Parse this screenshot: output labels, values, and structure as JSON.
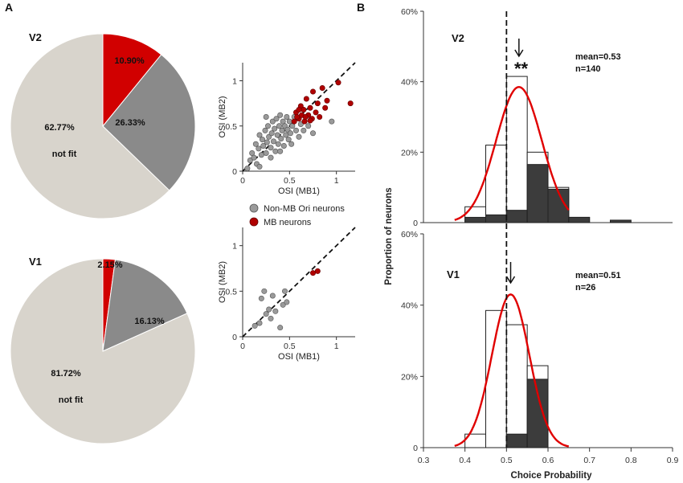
{
  "panels": {
    "A": "A",
    "B": "B"
  },
  "colors": {
    "notfit": "#d8d4cc",
    "gray": "#8a8a8a",
    "red": "#d10000",
    "dark": "#3c3c3c",
    "curve": "#e00000"
  },
  "chart_data": [
    {
      "id": "pie-v2",
      "type": "pie",
      "row_label": "V2",
      "slices": [
        {
          "label": "10.90%",
          "value": 10.9,
          "color": "#d10000",
          "sub_label": ""
        },
        {
          "label": "26.33%",
          "value": 26.33,
          "color": "#8a8a8a",
          "sub_label": ""
        },
        {
          "label": "62.77%",
          "value": 62.77,
          "color": "#d8d4cc",
          "sub_label": "not fit"
        }
      ]
    },
    {
      "id": "pie-v1",
      "type": "pie",
      "row_label": "V1",
      "slices": [
        {
          "label": "2.15%",
          "value": 2.15,
          "color": "#d10000",
          "sub_label": ""
        },
        {
          "label": "16.13%",
          "value": 16.13,
          "color": "#8a8a8a",
          "sub_label": ""
        },
        {
          "label": "81.72%",
          "value": 81.72,
          "color": "#d8d4cc",
          "sub_label": "not fit"
        }
      ]
    },
    {
      "id": "scatter-v2",
      "type": "scatter",
      "xlabel": "OSI (MB1)",
      "ylabel": "OSI (MB2)",
      "xlim": [
        0,
        1.2
      ],
      "ylim": [
        0,
        1.2
      ],
      "xticks": [
        "0",
        "0.5",
        "1"
      ],
      "yticks": [
        "0",
        "0.5",
        "1"
      ],
      "diagonal": true,
      "series": [
        {
          "name": "Non-MB Ori neurons",
          "color": "#9a9a9a",
          "points": [
            [
              0.05,
              0.03
            ],
            [
              0.08,
              0.12
            ],
            [
              0.1,
              0.2
            ],
            [
              0.12,
              0.15
            ],
            [
              0.14,
              0.3
            ],
            [
              0.15,
              0.08
            ],
            [
              0.17,
              0.25
            ],
            [
              0.18,
              0.4
            ],
            [
              0.2,
              0.18
            ],
            [
              0.21,
              0.35
            ],
            [
              0.22,
              0.28
            ],
            [
              0.24,
              0.45
            ],
            [
              0.25,
              0.2
            ],
            [
              0.26,
              0.32
            ],
            [
              0.27,
              0.5
            ],
            [
              0.28,
              0.38
            ],
            [
              0.3,
              0.26
            ],
            [
              0.31,
              0.42
            ],
            [
              0.32,
              0.55
            ],
            [
              0.33,
              0.33
            ],
            [
              0.34,
              0.47
            ],
            [
              0.35,
              0.22
            ],
            [
              0.36,
              0.58
            ],
            [
              0.37,
              0.4
            ],
            [
              0.38,
              0.3
            ],
            [
              0.39,
              0.5
            ],
            [
              0.4,
              0.62
            ],
            [
              0.41,
              0.36
            ],
            [
              0.42,
              0.45
            ],
            [
              0.43,
              0.55
            ],
            [
              0.44,
              0.28
            ],
            [
              0.45,
              0.5
            ],
            [
              0.46,
              0.4
            ],
            [
              0.47,
              0.6
            ],
            [
              0.48,
              0.46
            ],
            [
              0.49,
              0.35
            ],
            [
              0.5,
              0.55
            ],
            [
              0.51,
              0.42
            ],
            [
              0.52,
              0.3
            ],
            [
              0.53,
              0.5
            ],
            [
              0.55,
              0.6
            ],
            [
              0.57,
              0.45
            ],
            [
              0.6,
              0.38
            ],
            [
              0.62,
              0.52
            ],
            [
              0.65,
              0.45
            ],
            [
              0.7,
              0.5
            ],
            [
              0.75,
              0.42
            ],
            [
              0.95,
              0.55
            ],
            [
              0.25,
              0.6
            ],
            [
              0.3,
              0.15
            ],
            [
              0.18,
              0.05
            ],
            [
              0.4,
              0.22
            ]
          ]
        },
        {
          "name": "MB neurons",
          "color": "#b00000",
          "points": [
            [
              0.55,
              0.55
            ],
            [
              0.57,
              0.65
            ],
            [
              0.6,
              0.58
            ],
            [
              0.62,
              0.72
            ],
            [
              0.63,
              0.62
            ],
            [
              0.65,
              0.68
            ],
            [
              0.66,
              0.55
            ],
            [
              0.68,
              0.8
            ],
            [
              0.7,
              0.62
            ],
            [
              0.72,
              0.7
            ],
            [
              0.74,
              0.58
            ],
            [
              0.75,
              0.88
            ],
            [
              0.78,
              0.65
            ],
            [
              0.8,
              0.75
            ],
            [
              0.82,
              0.6
            ],
            [
              0.85,
              0.92
            ],
            [
              0.88,
              0.7
            ],
            [
              0.9,
              0.78
            ],
            [
              1.02,
              0.98
            ],
            [
              1.15,
              0.75
            ],
            [
              0.6,
              0.68
            ],
            [
              0.67,
              0.6
            ],
            [
              0.58,
              0.6
            ],
            [
              0.72,
              0.56
            ]
          ]
        }
      ]
    },
    {
      "id": "scatter-v1",
      "type": "scatter",
      "xlabel": "OSI (MB1)",
      "ylabel": "OSI (MB2)",
      "xlim": [
        0,
        1.2
      ],
      "ylim": [
        0,
        1.2
      ],
      "xticks": [
        "0",
        "0.5",
        "1"
      ],
      "yticks": [
        "0",
        "0.5",
        "1"
      ],
      "diagonal": true,
      "series": [
        {
          "name": "Non-MB Ori neurons",
          "color": "#9a9a9a",
          "points": [
            [
              0.13,
              0.12
            ],
            [
              0.18,
              0.15
            ],
            [
              0.2,
              0.42
            ],
            [
              0.23,
              0.5
            ],
            [
              0.25,
              0.25
            ],
            [
              0.28,
              0.3
            ],
            [
              0.3,
              0.2
            ],
            [
              0.32,
              0.45
            ],
            [
              0.35,
              0.28
            ],
            [
              0.4,
              0.1
            ],
            [
              0.43,
              0.35
            ],
            [
              0.45,
              0.5
            ],
            [
              0.47,
              0.38
            ]
          ]
        },
        {
          "name": "MB neurons",
          "color": "#b00000",
          "points": [
            [
              0.75,
              0.7
            ],
            [
              0.8,
              0.72
            ]
          ]
        }
      ]
    },
    {
      "id": "hist-v2",
      "type": "bar",
      "row_label": "V2",
      "mean_label": "mean=0.53",
      "n_label": "n=140",
      "significance": "**",
      "arrow_x": 0.53,
      "bin_edges": [
        0.4,
        0.45,
        0.5,
        0.55,
        0.6,
        0.65,
        0.7,
        0.75,
        0.8,
        0.85
      ],
      "open_values": [
        0.045,
        0.22,
        0.415,
        0.2,
        0.1,
        0.015,
        0.0,
        0.0,
        0.0
      ],
      "filled_values": [
        0.015,
        0.022,
        0.035,
        0.165,
        0.095,
        0.015,
        0.0,
        0.007,
        0.0
      ],
      "fit_mean": 0.53,
      "fit_sd": 0.055,
      "fit_peak": 0.385,
      "ylim": [
        0,
        0.6
      ],
      "yticks": [
        "0",
        "20%",
        "40%",
        "60%"
      ],
      "ytick_values": [
        0,
        0.2,
        0.4,
        0.6
      ]
    },
    {
      "id": "hist-v1",
      "type": "bar",
      "row_label": "V1",
      "mean_label": "mean=0.51",
      "n_label": "n=26",
      "significance": "",
      "arrow_x": 0.51,
      "bin_edges": [
        0.4,
        0.45,
        0.5,
        0.55,
        0.6,
        0.65,
        0.7,
        0.75,
        0.8,
        0.85
      ],
      "open_values": [
        0.038,
        0.385,
        0.345,
        0.23,
        0.0,
        0.0,
        0.0,
        0.0,
        0.0
      ],
      "filled_values": [
        0.0,
        0.0,
        0.038,
        0.192,
        0.0,
        0.0,
        0.0,
        0.0,
        0.0
      ],
      "fit_mean": 0.51,
      "fit_sd": 0.045,
      "fit_peak": 0.43,
      "ylim": [
        0,
        0.6
      ],
      "yticks": [
        "0",
        "20%",
        "40%",
        "60%"
      ],
      "ytick_values": [
        0,
        0.2,
        0.4,
        0.6
      ]
    }
  ],
  "hist_axes": {
    "xlabel": "Choice Probability",
    "ylabel": "Proportion of neurons",
    "xlim": [
      0.3,
      0.9
    ],
    "xticks": [
      "0.3",
      "0.4",
      "0.5",
      "0.6",
      "0.7",
      "0.8",
      "0.9"
    ],
    "xtick_values": [
      0.3,
      0.4,
      0.5,
      0.6,
      0.7,
      0.8,
      0.9
    ],
    "reference_line": 0.5
  }
}
